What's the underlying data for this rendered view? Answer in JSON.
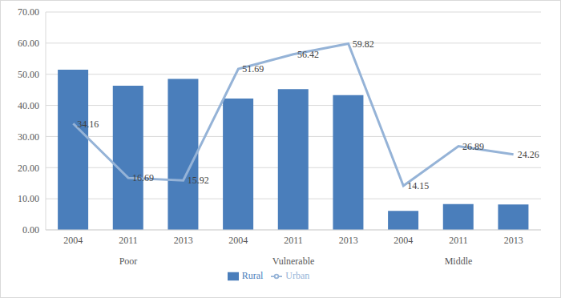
{
  "chart_data": {
    "type": "bar",
    "categories": [
      "2004",
      "2011",
      "2013",
      "2004",
      "2011",
      "2013",
      "2004",
      "2011",
      "2013"
    ],
    "groups": [
      "Poor",
      "Vulnerable",
      "Middle"
    ],
    "series": [
      {
        "name": "Rural",
        "type": "bar",
        "color": "#4a7ebb",
        "values": [
          51.5,
          46.3,
          48.5,
          42.2,
          45.2,
          43.3,
          6.1,
          8.3,
          8.2
        ]
      },
      {
        "name": "Urban",
        "type": "line",
        "color": "#95b3d7",
        "marker": "none",
        "line_style": "solid",
        "data_labels": true,
        "values": [
          34.16,
          16.69,
          15.92,
          51.69,
          56.42,
          59.82,
          14.15,
          26.89,
          24.26
        ]
      }
    ],
    "ylim": [
      0,
      70
    ],
    "yticks": [
      {
        "value": 0,
        "label": "0.00"
      },
      {
        "value": 10,
        "label": "10.00"
      },
      {
        "value": 20,
        "label": "20.00"
      },
      {
        "value": 30,
        "label": "30.00"
      },
      {
        "value": 40,
        "label": "40.00"
      },
      {
        "value": 50,
        "label": "50.00"
      },
      {
        "value": 60,
        "label": "60.00"
      },
      {
        "value": 70,
        "label": "70.00"
      }
    ],
    "grid": true,
    "legend": "bottom"
  }
}
